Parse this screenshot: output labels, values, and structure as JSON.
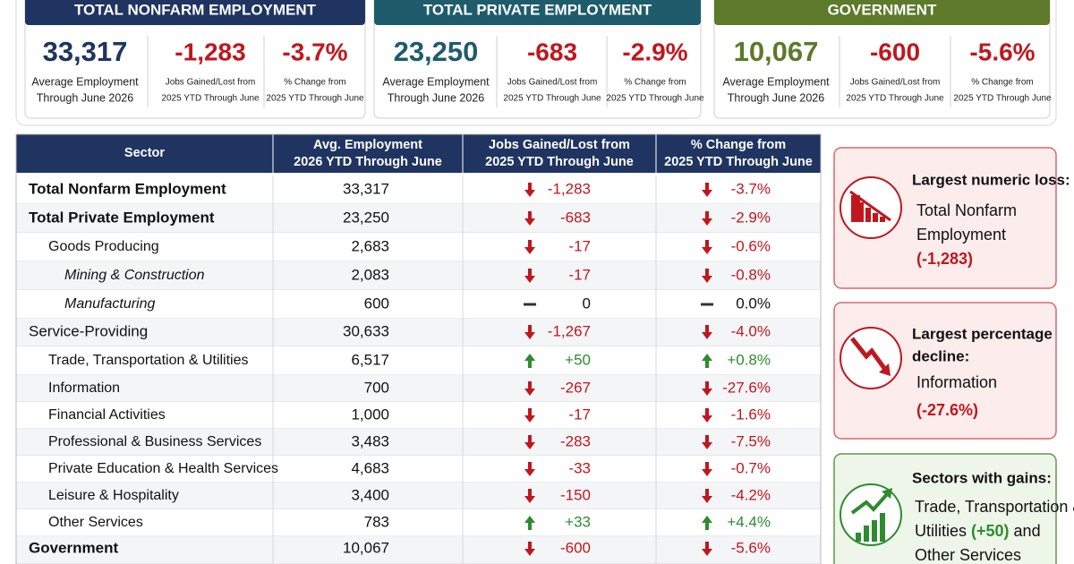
{
  "cards": [
    {
      "title": "TOTAL NONFARM EMPLOYMENT",
      "color": "#1f3461",
      "stats": [
        {
          "value": "33,317",
          "color": "#1f3461",
          "label": [
            "Average Employment",
            "Through June 2026"
          ]
        },
        {
          "value": "-1,283",
          "color": "#c0171e",
          "label": [
            "Jobs Gained/Lost from",
            "2025 YTD Through June"
          ]
        },
        {
          "value": "-3.7%",
          "color": "#c0171e",
          "label": [
            "% Change from",
            "2025 YTD Through June"
          ]
        }
      ]
    },
    {
      "title": "TOTAL PRIVATE EMPLOYMENT",
      "color": "#1e5c6b",
      "stats": [
        {
          "value": "23,250",
          "color": "#1e5c6b",
          "label": [
            "Average Employment",
            "Through June 2026"
          ]
        },
        {
          "value": "-683",
          "color": "#c0171e",
          "label": [
            "Jobs Gained/Lost from",
            "2025 YTD Through June"
          ]
        },
        {
          "value": "-2.9%",
          "color": "#c0171e",
          "label": [
            "% Change from",
            "2025 YTD Through June"
          ]
        }
      ]
    },
    {
      "title": "GOVERNMENT",
      "color": "#5c7a2a",
      "stats": [
        {
          "value": "10,067",
          "color": "#5c7a2a",
          "label": [
            "Average Employment",
            "Through June 2026"
          ]
        },
        {
          "value": "-600",
          "color": "#c0171e",
          "label": [
            "Jobs Gained/Lost from",
            "2025 YTD Through June"
          ]
        },
        {
          "value": "-5.6%",
          "color": "#c0171e",
          "label": [
            "% Change from",
            "2025 YTD Through June"
          ]
        }
      ]
    }
  ],
  "table": {
    "columns": [
      [
        "Sector"
      ],
      [
        "Avg. Employment",
        "2026 YTD Through June"
      ],
      [
        "Jobs Gained/Lost from",
        "2025 YTD Through June"
      ],
      [
        "% Change from",
        "2025 YTD Through June"
      ]
    ],
    "rows": [
      {
        "cells": [
          "Total Nonfarm Employment",
          "33,317",
          "-1,283",
          "-3.7%"
        ],
        "level": 0,
        "style": "bold",
        "trend": "down"
      },
      {
        "cells": [
          "Total Private Employment",
          "23,250",
          "-683",
          "-2.9%"
        ],
        "level": 0,
        "style": "bold",
        "trend": "down"
      },
      {
        "cells": [
          "Goods Producing",
          "2,683",
          "-17",
          "-0.6%"
        ],
        "level": 1,
        "style": "normal",
        "trend": "down"
      },
      {
        "cells": [
          "Mining & Construction",
          "2,083",
          "-17",
          "-0.8%"
        ],
        "level": 2,
        "style": "italic",
        "trend": "down"
      },
      {
        "cells": [
          "Manufacturing",
          "600",
          "0",
          "0.0%"
        ],
        "level": 2,
        "style": "italic",
        "trend": "flat"
      },
      {
        "cells": [
          "Service-Providing",
          "30,633",
          "-1,267",
          "-4.0%"
        ],
        "level": 0,
        "style": "normal",
        "trend": "down"
      },
      {
        "cells": [
          "Trade, Transportation & Utilities",
          "6,517",
          "+50",
          "+0.8%"
        ],
        "level": 1,
        "style": "normal",
        "trend": "up"
      },
      {
        "cells": [
          "Information",
          "700",
          "-267",
          "-27.6%"
        ],
        "level": 1,
        "style": "normal",
        "trend": "down"
      },
      {
        "cells": [
          "Financial Activities",
          "1,000",
          "-17",
          "-1.6%"
        ],
        "level": 1,
        "style": "normal",
        "trend": "down"
      },
      {
        "cells": [
          "Professional & Business Services",
          "3,483",
          "-283",
          "-7.5%"
        ],
        "level": 1,
        "style": "normal",
        "trend": "down"
      },
      {
        "cells": [
          "Private Education & Health Services",
          "4,683",
          "-33",
          "-0.7%"
        ],
        "level": 1,
        "style": "normal",
        "trend": "down"
      },
      {
        "cells": [
          "Leisure & Hospitality",
          "3,400",
          "-150",
          "-4.2%"
        ],
        "level": 1,
        "style": "normal",
        "trend": "down"
      },
      {
        "cells": [
          "Other Services",
          "783",
          "+33",
          "+4.4%"
        ],
        "level": 1,
        "style": "normal",
        "trend": "up"
      },
      {
        "cells": [
          "Government",
          "10,067",
          "-600",
          "-5.6%"
        ],
        "level": 0,
        "style": "bold",
        "trend": "down"
      }
    ]
  },
  "callouts": [
    {
      "tone": "loss",
      "title": [
        "Largest numeric loss:"
      ],
      "body": [
        [
          {
            "text": "Total Nonfarm"
          }
        ],
        [
          {
            "text": "Employment"
          }
        ],
        [
          {
            "text": "(-1,283)",
            "highlight": true
          }
        ]
      ]
    },
    {
      "tone": "loss",
      "title": [
        "Largest percentage",
        "decline:"
      ],
      "body": [
        [
          {
            "text": "Information"
          }
        ],
        [
          {
            "text": "(-27.6%)",
            "highlight": true
          }
        ]
      ]
    },
    {
      "tone": "gain",
      "title": [
        "Sectors with gains:"
      ],
      "body": [
        [
          {
            "text": "Trade, Transportation &"
          }
        ],
        [
          {
            "text": "Utilities "
          },
          {
            "text": "(+50)",
            "highlight": true
          },
          {
            "text": " and"
          }
        ],
        [
          {
            "text": "Other Services"
          }
        ]
      ]
    }
  ]
}
